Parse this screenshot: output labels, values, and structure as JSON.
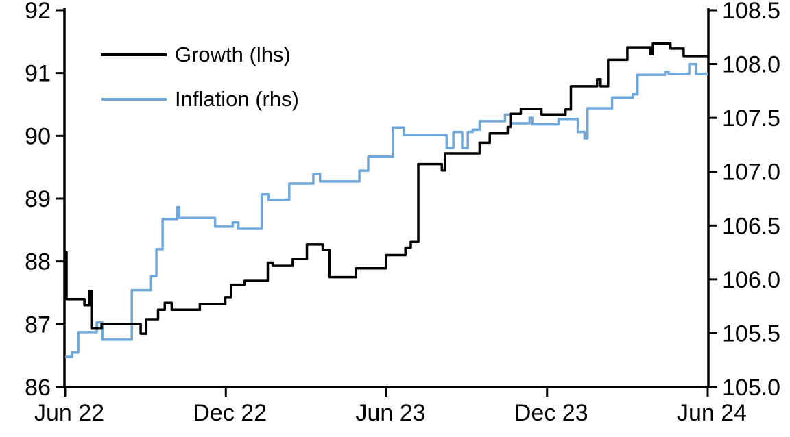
{
  "chart_data": {
    "type": "line",
    "step": true,
    "title": "",
    "grid": false,
    "legend_position": "top-left-inside",
    "x_axis": {
      "unit": "months-since-Jun-2022",
      "range": [
        0,
        24
      ],
      "tick_positions": [
        0,
        6,
        12,
        18,
        24
      ],
      "tick_labels": [
        "Jun 22",
        "Dec 22",
        "Jun 23",
        "Dec 23",
        "Jun 24"
      ]
    },
    "left_axis": {
      "range": [
        86,
        92
      ],
      "tick_values": [
        86,
        87,
        88,
        89,
        90,
        91,
        92
      ],
      "tick_labels": [
        "86",
        "87",
        "88",
        "89",
        "90",
        "91",
        "92"
      ]
    },
    "right_axis": {
      "range": [
        105.0,
        108.5
      ],
      "tick_values": [
        105.0,
        105.5,
        106.0,
        106.5,
        107.0,
        107.5,
        108.0,
        108.5
      ],
      "tick_labels": [
        "105.0",
        "105.5",
        "106.0",
        "106.5",
        "107.0",
        "107.5",
        "108.0",
        "108.5"
      ]
    },
    "series": [
      {
        "name": "Growth (lhs)",
        "axis": "left",
        "color": "#000000",
        "points": [
          [
            0.0,
            88.15
          ],
          [
            0.05,
            87.4
          ],
          [
            0.72,
            87.3
          ],
          [
            0.9,
            87.53
          ],
          [
            0.98,
            86.93
          ],
          [
            1.36,
            87.0
          ],
          [
            2.82,
            86.85
          ],
          [
            3.03,
            87.08
          ],
          [
            3.47,
            87.23
          ],
          [
            3.72,
            87.34
          ],
          [
            3.98,
            87.23
          ],
          [
            5.03,
            87.32
          ],
          [
            5.98,
            87.43
          ],
          [
            6.19,
            87.63
          ],
          [
            6.7,
            87.69
          ],
          [
            7.57,
            87.98
          ],
          [
            7.75,
            87.93
          ],
          [
            8.5,
            88.04
          ],
          [
            9.03,
            88.27
          ],
          [
            9.62,
            88.18
          ],
          [
            9.88,
            87.75
          ],
          [
            10.86,
            87.89
          ],
          [
            11.99,
            88.1
          ],
          [
            12.71,
            88.22
          ],
          [
            12.91,
            88.31
          ],
          [
            13.19,
            89.55
          ],
          [
            14.07,
            89.45
          ],
          [
            14.19,
            89.72
          ],
          [
            15.48,
            89.89
          ],
          [
            15.86,
            90.04
          ],
          [
            16.53,
            90.14
          ],
          [
            16.63,
            90.35
          ],
          [
            17.02,
            90.43
          ],
          [
            17.79,
            90.34
          ],
          [
            18.69,
            90.42
          ],
          [
            18.89,
            90.79
          ],
          [
            19.87,
            90.9
          ],
          [
            20.0,
            90.79
          ],
          [
            20.28,
            91.21
          ],
          [
            21.0,
            91.41
          ],
          [
            21.87,
            91.3
          ],
          [
            21.95,
            91.47
          ],
          [
            22.61,
            91.39
          ],
          [
            23.1,
            91.27
          ],
          [
            24.0,
            91.27
          ]
        ]
      },
      {
        "name": "Inflation (rhs)",
        "axis": "right",
        "color": "#6FA8DC",
        "points": [
          [
            0.0,
            105.28
          ],
          [
            0.26,
            105.32
          ],
          [
            0.49,
            105.51
          ],
          [
            1.18,
            105.6
          ],
          [
            1.39,
            105.44
          ],
          [
            2.49,
            105.9
          ],
          [
            3.21,
            106.03
          ],
          [
            3.41,
            106.28
          ],
          [
            3.64,
            106.56
          ],
          [
            4.18,
            106.67
          ],
          [
            4.26,
            106.57
          ],
          [
            5.6,
            106.49
          ],
          [
            6.26,
            106.53
          ],
          [
            6.47,
            106.47
          ],
          [
            7.34,
            106.79
          ],
          [
            7.6,
            106.74
          ],
          [
            8.37,
            106.89
          ],
          [
            9.27,
            106.98
          ],
          [
            9.52,
            106.91
          ],
          [
            10.99,
            107.01
          ],
          [
            11.32,
            107.14
          ],
          [
            12.24,
            107.41
          ],
          [
            12.65,
            107.34
          ],
          [
            14.25,
            107.22
          ],
          [
            14.5,
            107.37
          ],
          [
            14.83,
            107.22
          ],
          [
            15.04,
            107.37
          ],
          [
            15.22,
            107.39
          ],
          [
            15.48,
            107.47
          ],
          [
            16.43,
            107.53
          ],
          [
            16.63,
            107.45
          ],
          [
            17.35,
            107.5
          ],
          [
            17.45,
            107.44
          ],
          [
            18.43,
            107.49
          ],
          [
            19.15,
            107.37
          ],
          [
            19.4,
            107.31
          ],
          [
            19.51,
            107.59
          ],
          [
            20.43,
            107.69
          ],
          [
            21.2,
            107.72
          ],
          [
            21.38,
            107.9
          ],
          [
            22.41,
            107.93
          ],
          [
            22.54,
            107.91
          ],
          [
            23.31,
            108.0
          ],
          [
            23.56,
            107.91
          ],
          [
            24.0,
            107.91
          ]
        ]
      }
    ]
  }
}
